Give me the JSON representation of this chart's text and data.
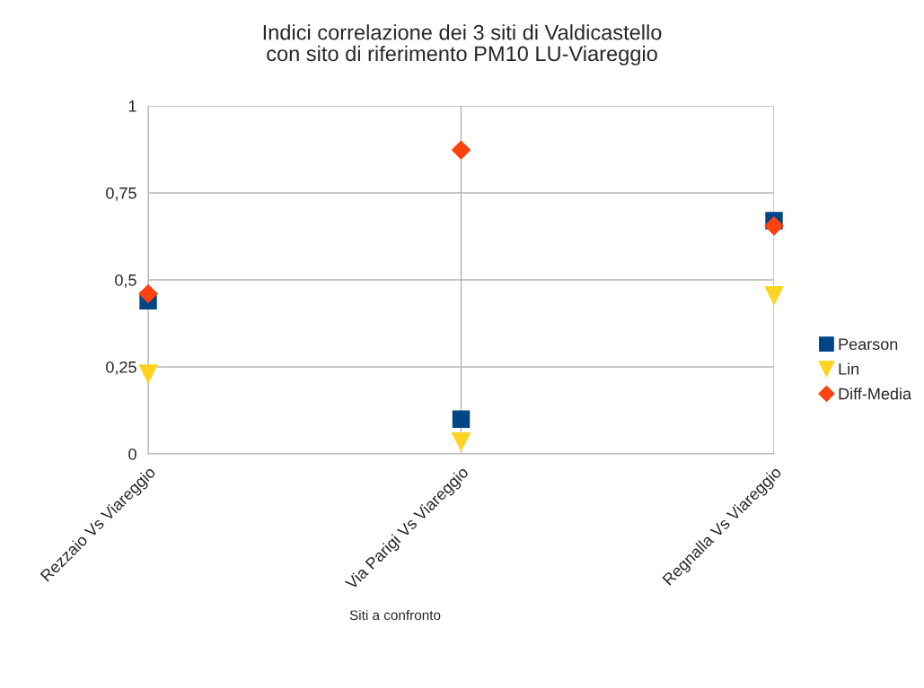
{
  "chart_data": {
    "type": "scatter",
    "title": "Indici correlazione dei 3 siti di Valdicastello\ncon sito di riferimento PM10 LU-Viareggio",
    "xlabel": "Siti a confronto",
    "categories": [
      "Rezzaio Vs Viareggio",
      "Via Parigi Vs Viareggio",
      "Regnalla Vs Viareggio"
    ],
    "series": [
      {
        "name": "Pearson",
        "color": "#004586",
        "marker": "square",
        "values": [
          0.44,
          0.1,
          0.67
        ]
      },
      {
        "name": "Lin",
        "color": "#ffd320",
        "marker": "triangle",
        "values": [
          0.23,
          0.035,
          0.455
        ]
      },
      {
        "name": "Diff-Media",
        "color": "#ff420e",
        "marker": "diamond",
        "values": [
          0.46,
          0.873,
          0.655
        ]
      }
    ],
    "ylim": [
      0,
      1
    ],
    "yticks": [
      {
        "value": 0,
        "label": "0"
      },
      {
        "value": 0.25,
        "label": "0,25"
      },
      {
        "value": 0.5,
        "label": "0,5"
      },
      {
        "value": 0.75,
        "label": "0,75"
      },
      {
        "value": 1,
        "label": "1"
      }
    ],
    "grid": true,
    "legend": "right"
  }
}
